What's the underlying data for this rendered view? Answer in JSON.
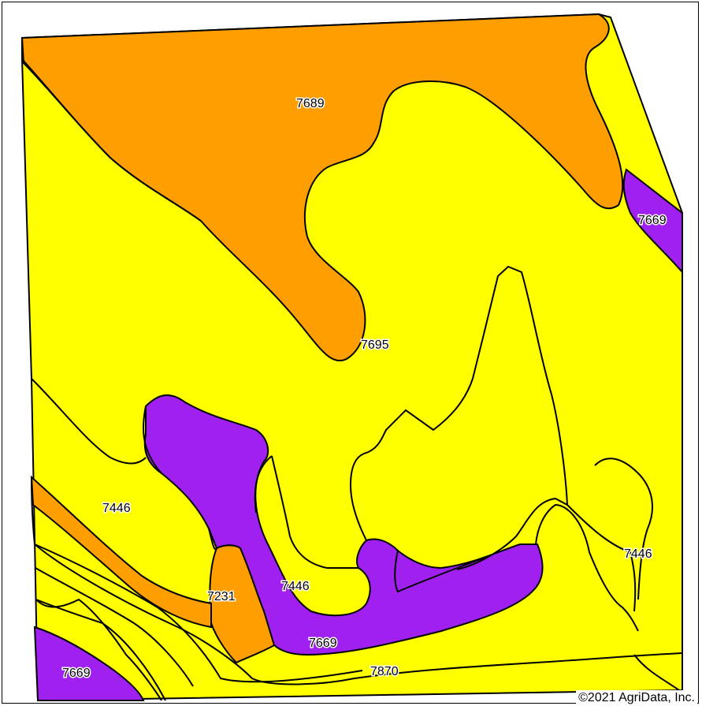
{
  "map": {
    "colors": {
      "yellow": "#ffff00",
      "orange": "#ff9e00",
      "purple": "#a020f0",
      "line": "#000000"
    },
    "labels": [
      {
        "id": "label-7689",
        "text": "7689"
      },
      {
        "id": "label-7669-east",
        "text": "7669"
      },
      {
        "id": "label-7695",
        "text": "7695"
      },
      {
        "id": "label-7446-west",
        "text": "7446"
      },
      {
        "id": "label-7446-east",
        "text": "7446"
      },
      {
        "id": "label-7446-south",
        "text": "7446"
      },
      {
        "id": "label-7231",
        "text": "7231"
      },
      {
        "id": "label-7669-south",
        "text": "7669"
      },
      {
        "id": "label-7669-southwest",
        "text": "7669"
      },
      {
        "id": "label-7870",
        "text": "7870"
      }
    ]
  },
  "footer": {
    "copyright": "©2021 AgriData, Inc."
  }
}
